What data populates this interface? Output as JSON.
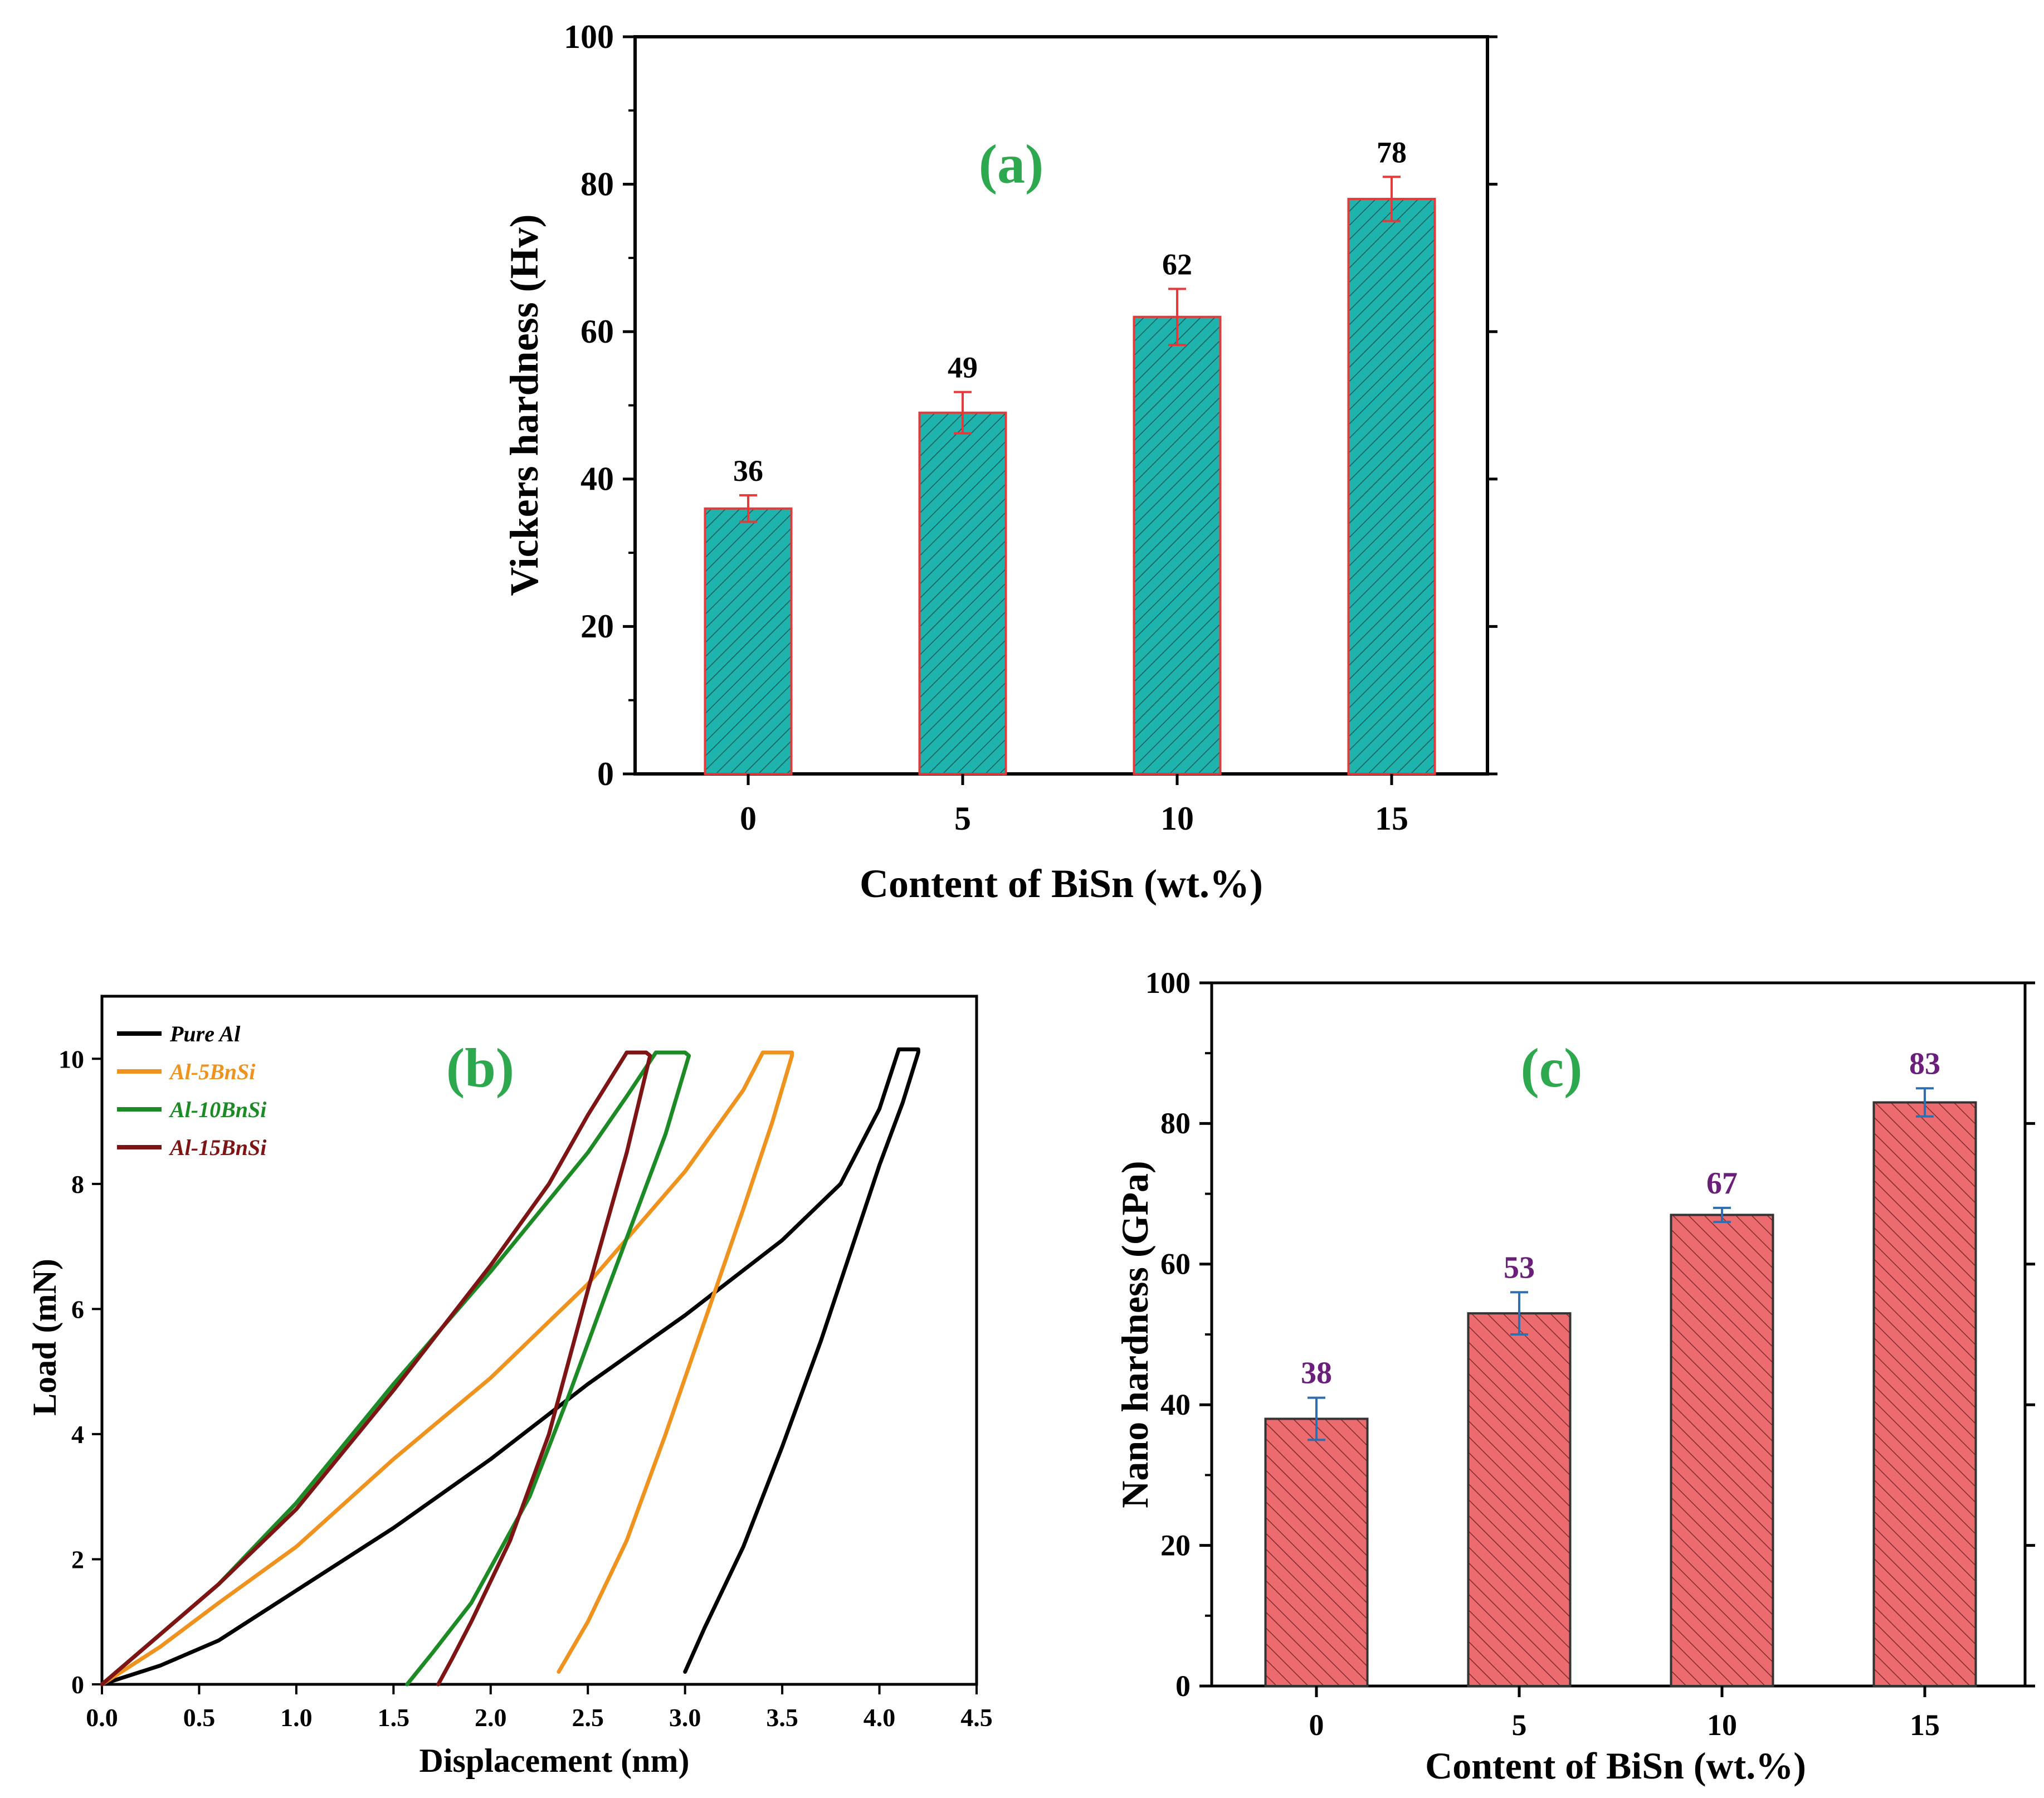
{
  "colors": {
    "panel_label": "#2ea84f",
    "bar_a_fill": "#1fb3ad",
    "bar_a_edge": "#e63a3a",
    "err_a": "#e63a3a",
    "bar_c_fill": "#ec6b6e",
    "bar_c_edge": "#333333",
    "err_c": "#2f6fb0",
    "label_c": "#6a1f7a"
  },
  "chart_data": [
    {
      "id": "a",
      "type": "bar",
      "panel_label": "(a)",
      "title": "",
      "xlabel": "Content of BiSn (wt.%)",
      "ylabel": "Vickers hardness (Hv)",
      "categories": [
        "0",
        "5",
        "10",
        "15"
      ],
      "values": [
        36,
        49,
        62,
        78
      ],
      "errors": [
        1.8,
        2.8,
        3.8,
        3.0
      ],
      "data_labels": [
        "36",
        "49",
        "62",
        "78"
      ],
      "ylim": [
        0,
        100
      ],
      "yticks": [
        "0",
        "20",
        "40",
        "60",
        "80",
        "100"
      ]
    },
    {
      "id": "b",
      "type": "line",
      "panel_label": "(b)",
      "title": "",
      "xlabel": "Displacement (nm)",
      "ylabel": "Load (mN)",
      "xlim": [
        0,
        4.5
      ],
      "ylim": [
        0,
        11
      ],
      "xticks": [
        "0.0",
        "0.5",
        "1.0",
        "1.5",
        "2.0",
        "2.5",
        "3.0",
        "3.5",
        "4.0",
        "4.5"
      ],
      "yticks": [
        "0",
        "2",
        "4",
        "6",
        "8",
        "10"
      ],
      "legend_position": "top-left",
      "series": [
        {
          "name": "Pure Al",
          "color": "#000000",
          "x": [
            0,
            0.3,
            0.6,
            1.0,
            1.5,
            2.0,
            2.5,
            3.0,
            3.5,
            3.8,
            4.0,
            4.1,
            4.2,
            4.2,
            4.12,
            4.0,
            3.7,
            3.5,
            3.3,
            3.1,
            3.0
          ],
          "y": [
            0,
            0.3,
            0.7,
            1.5,
            2.5,
            3.6,
            4.8,
            5.9,
            7.1,
            8.0,
            9.2,
            10.15,
            10.15,
            10.1,
            9.3,
            8.3,
            5.5,
            3.8,
            2.2,
            0.9,
            0.2
          ]
        },
        {
          "name": "Al-5BnSi",
          "color": "#f0921e",
          "x": [
            0,
            0.3,
            0.6,
            1.0,
            1.5,
            2.0,
            2.5,
            3.0,
            3.3,
            3.4,
            3.55,
            3.55,
            3.45,
            3.3,
            3.1,
            2.9,
            2.7,
            2.5,
            2.35
          ],
          "y": [
            0,
            0.6,
            1.3,
            2.2,
            3.6,
            4.9,
            6.4,
            8.2,
            9.5,
            10.1,
            10.1,
            10.05,
            9.0,
            7.6,
            5.8,
            4.0,
            2.3,
            1.0,
            0.2
          ]
        },
        {
          "name": "Al-10BnSi",
          "color": "#1c8a25",
          "x": [
            0,
            0.3,
            0.6,
            1.0,
            1.5,
            2.0,
            2.5,
            2.7,
            2.85,
            3.0,
            3.02,
            2.9,
            2.6,
            2.4,
            2.2,
            1.9,
            1.7,
            1.57
          ],
          "y": [
            0,
            0.8,
            1.6,
            2.9,
            4.8,
            6.6,
            8.5,
            9.4,
            10.1,
            10.1,
            10.05,
            8.8,
            6.3,
            4.6,
            3.0,
            1.3,
            0.5,
            0
          ]
        },
        {
          "name": "Al-15BnSi",
          "color": "#7e1414",
          "x": [
            0,
            0.3,
            0.6,
            1.0,
            1.5,
            2.0,
            2.3,
            2.5,
            2.7,
            2.8,
            2.82,
            2.7,
            2.5,
            2.3,
            2.1,
            1.9,
            1.8,
            1.73
          ],
          "y": [
            0,
            0.8,
            1.6,
            2.8,
            4.7,
            6.7,
            8.0,
            9.1,
            10.1,
            10.1,
            10.05,
            8.5,
            6.3,
            4.0,
            2.3,
            1.0,
            0.4,
            0
          ]
        }
      ]
    },
    {
      "id": "c",
      "type": "bar",
      "panel_label": "(c)",
      "title": "",
      "xlabel": "Content of BiSn (wt.%)",
      "ylabel": "Nano hardness (GPa)",
      "categories": [
        "0",
        "5",
        "10",
        "15"
      ],
      "values": [
        38,
        53,
        67,
        83
      ],
      "errors": [
        3.0,
        3.0,
        1.0,
        2.0
      ],
      "data_labels": [
        "38",
        "53",
        "67",
        "83"
      ],
      "ylim": [
        0,
        100
      ],
      "yticks": [
        "0",
        "20",
        "40",
        "60",
        "80",
        "100"
      ]
    }
  ]
}
